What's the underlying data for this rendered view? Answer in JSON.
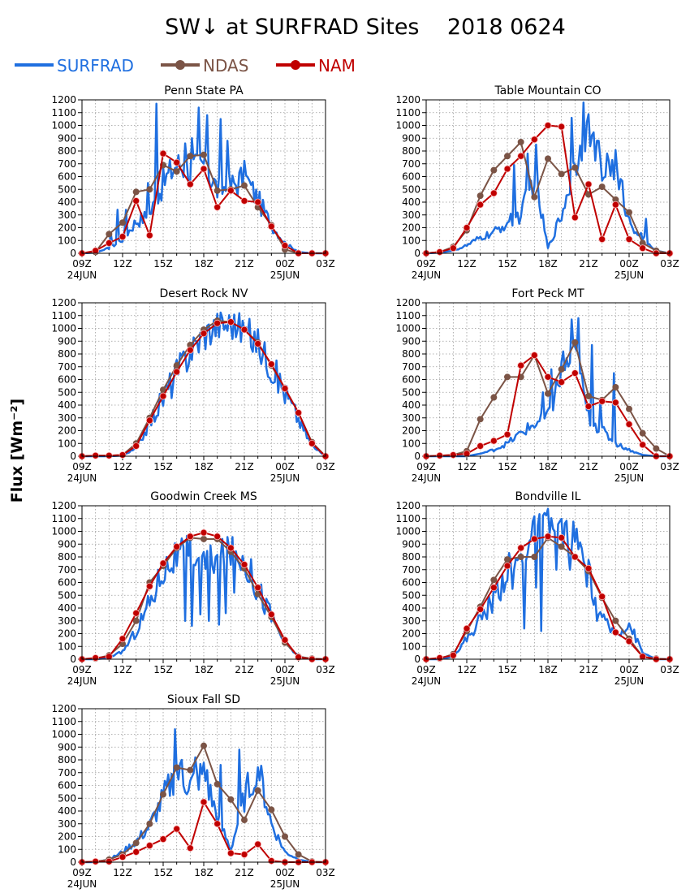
{
  "title": "SW↓ at SURFRAD Sites    2018 0624",
  "ylabel": "Flux [Wm⁻²]",
  "legend": [
    {
      "name": "SURFRAD",
      "color": "#1f6fe0",
      "marker": false
    },
    {
      "name": "NDAS",
      "color": "#7b5446",
      "marker": true
    },
    {
      "name": "NAM",
      "color": "#c00000",
      "marker": true
    }
  ],
  "colors": {
    "surfrad": "#1f6fe0",
    "ndas": "#7b5446",
    "nam": "#c00000",
    "grid": "#999999"
  },
  "chart_data": [
    {
      "type": "line",
      "title": "Penn State PA",
      "xlabel": "",
      "ylabel": "Flux [Wm⁻²]",
      "x": [
        "09Z",
        "10Z",
        "11Z",
        "12Z",
        "13Z",
        "14Z",
        "15Z",
        "16Z",
        "17Z",
        "18Z",
        "19Z",
        "20Z",
        "21Z",
        "22Z",
        "23Z",
        "00Z",
        "01Z",
        "02Z",
        "03Z"
      ],
      "xticks": [
        "09Z",
        "12Z",
        "15Z",
        "18Z",
        "21Z",
        "00Z",
        "03Z"
      ],
      "date_labels": {
        "09Z": "24JUN",
        "00Z": "25JUN"
      },
      "ylim": [
        0,
        1200
      ],
      "yticks": [
        0,
        100,
        200,
        300,
        400,
        500,
        600,
        700,
        800,
        900,
        1000,
        1100,
        1200
      ],
      "grid": true,
      "series": [
        {
          "name": "SURFRAD",
          "values": [
            0,
            5,
            40,
            110,
            250,
            300,
            550,
            700,
            640,
            700,
            500,
            520,
            600,
            420,
            220,
            80,
            10,
            0,
            0
          ],
          "peaks": [
            [
              11.1,
              160
            ],
            [
              11.6,
              340
            ],
            [
              12.3,
              340
            ],
            [
              13.9,
              550
            ],
            [
              14.5,
              1170
            ],
            [
              16.6,
              860
            ],
            [
              17.1,
              900
            ],
            [
              17.6,
              1140
            ],
            [
              18.2,
              1080
            ],
            [
              19.3,
              1050
            ],
            [
              19.8,
              880
            ],
            [
              21.1,
              610
            ]
          ]
        },
        {
          "name": "NDAS",
          "values": [
            0,
            10,
            150,
            240,
            480,
            500,
            690,
            640,
            760,
            770,
            490,
            500,
            530,
            360,
            220,
            30,
            0,
            0,
            0
          ]
        },
        {
          "name": "NAM",
          "values": [
            0,
            20,
            80,
            130,
            410,
            140,
            780,
            710,
            540,
            660,
            360,
            490,
            410,
            400,
            210,
            60,
            0,
            0,
            0
          ]
        }
      ]
    },
    {
      "type": "line",
      "title": "Table Mountain CO",
      "xlabel": "",
      "ylabel": "Flux [Wm⁻²]",
      "x": [
        "09Z",
        "10Z",
        "11Z",
        "12Z",
        "13Z",
        "14Z",
        "15Z",
        "16Z",
        "17Z",
        "18Z",
        "19Z",
        "20Z",
        "21Z",
        "22Z",
        "23Z",
        "00Z",
        "01Z",
        "02Z",
        "03Z"
      ],
      "xticks": [
        "09Z",
        "12Z",
        "15Z",
        "18Z",
        "21Z",
        "00Z",
        "03Z"
      ],
      "date_labels": {
        "09Z": "24JUN",
        "00Z": "25JUN"
      },
      "ylim": [
        0,
        1200
      ],
      "yticks": [
        0,
        100,
        200,
        300,
        400,
        500,
        600,
        700,
        800,
        900,
        1000,
        1100,
        1200
      ],
      "grid": true,
      "series": [
        {
          "name": "SURFRAD",
          "values": [
            0,
            5,
            20,
            60,
            120,
            160,
            240,
            300,
            600,
            40,
            300,
            700,
            1000,
            600,
            700,
            250,
            120,
            20,
            0
          ],
          "peaks": [
            [
              15.5,
              690
            ],
            [
              16.5,
              780
            ],
            [
              17.1,
              850
            ],
            [
              19.8,
              1060
            ],
            [
              20.6,
              1180
            ],
            [
              21.7,
              880
            ],
            [
              22.4,
              780
            ],
            [
              23.2,
              500
            ],
            [
              24.2,
              200
            ],
            [
              25.3,
              270
            ]
          ]
        },
        {
          "name": "NDAS",
          "values": [
            0,
            10,
            50,
            180,
            450,
            650,
            760,
            870,
            440,
            740,
            620,
            670,
            460,
            520,
            420,
            320,
            80,
            20,
            0
          ]
        },
        {
          "name": "NAM",
          "values": [
            0,
            10,
            40,
            200,
            380,
            470,
            660,
            760,
            890,
            1000,
            990,
            280,
            540,
            110,
            380,
            110,
            40,
            0,
            0
          ]
        }
      ]
    },
    {
      "type": "line",
      "title": "Desert Rock NV",
      "xlabel": "",
      "ylabel": "Flux [Wm⁻²]",
      "x": [
        "09Z",
        "10Z",
        "11Z",
        "12Z",
        "13Z",
        "14Z",
        "15Z",
        "16Z",
        "17Z",
        "18Z",
        "19Z",
        "20Z",
        "21Z",
        "22Z",
        "23Z",
        "00Z",
        "01Z",
        "02Z",
        "03Z"
      ],
      "xticks": [
        "09Z",
        "12Z",
        "15Z",
        "18Z",
        "21Z",
        "00Z",
        "03Z"
      ],
      "date_labels": {
        "09Z": "24JUN",
        "00Z": "25JUN"
      },
      "ylim": [
        0,
        1200
      ],
      "yticks": [
        0,
        100,
        200,
        300,
        400,
        500,
        600,
        700,
        800,
        900,
        1000,
        1100,
        1200
      ],
      "grid": true,
      "series": [
        {
          "name": "SURFRAD",
          "values": [
            0,
            0,
            0,
            5,
            60,
            260,
            460,
            650,
            820,
            950,
            1030,
            1040,
            990,
            880,
            700,
            500,
            290,
            80,
            0
          ]
        },
        {
          "name": "NDAS",
          "values": [
            0,
            5,
            5,
            10,
            100,
            300,
            520,
            710,
            870,
            990,
            1060,
            1050,
            990,
            890,
            710,
            530,
            340,
            110,
            0
          ]
        },
        {
          "name": "NAM",
          "values": [
            0,
            5,
            5,
            10,
            80,
            280,
            470,
            660,
            830,
            960,
            1040,
            1050,
            990,
            880,
            720,
            530,
            340,
            100,
            0
          ]
        }
      ]
    },
    {
      "type": "line",
      "title": "Fort Peck MT",
      "xlabel": "",
      "ylabel": "Flux [Wm⁻²]",
      "x": [
        "09Z",
        "10Z",
        "11Z",
        "12Z",
        "13Z",
        "14Z",
        "15Z",
        "16Z",
        "17Z",
        "18Z",
        "19Z",
        "20Z",
        "21Z",
        "22Z",
        "23Z",
        "00Z",
        "01Z",
        "02Z",
        "03Z"
      ],
      "xticks": [
        "09Z",
        "12Z",
        "15Z",
        "18Z",
        "21Z",
        "00Z",
        "03Z"
      ],
      "date_labels": {
        "09Z": "24JUN",
        "00Z": "25JUN"
      },
      "ylim": [
        0,
        1200
      ],
      "yticks": [
        0,
        100,
        200,
        300,
        400,
        500,
        600,
        700,
        800,
        900,
        1000,
        1100,
        1200
      ],
      "grid": true,
      "series": [
        {
          "name": "SURFRAD",
          "values": [
            0,
            0,
            0,
            0,
            20,
            50,
            100,
            180,
            250,
            300,
            650,
            800,
            300,
            200,
            100,
            50,
            10,
            0,
            0
          ],
          "peaks": [
            [
              17.6,
              500
            ],
            [
              18.3,
              680
            ],
            [
              19.1,
              820
            ],
            [
              19.7,
              1070
            ],
            [
              20.2,
              1080
            ],
            [
              21.2,
              870
            ],
            [
              21.9,
              430
            ],
            [
              22.9,
              650
            ]
          ]
        },
        {
          "name": "NDAS",
          "values": [
            0,
            5,
            10,
            40,
            290,
            460,
            620,
            620,
            790,
            490,
            680,
            890,
            470,
            440,
            540,
            370,
            180,
            60,
            0
          ]
        },
        {
          "name": "NAM",
          "values": [
            0,
            5,
            10,
            20,
            80,
            120,
            170,
            710,
            790,
            620,
            580,
            650,
            390,
            430,
            420,
            250,
            90,
            0,
            0
          ]
        }
      ]
    },
    {
      "type": "line",
      "title": "Goodwin Creek MS",
      "xlabel": "",
      "ylabel": "Flux [Wm⁻²]",
      "x": [
        "09Z",
        "10Z",
        "11Z",
        "12Z",
        "13Z",
        "14Z",
        "15Z",
        "16Z",
        "17Z",
        "18Z",
        "19Z",
        "20Z",
        "21Z",
        "22Z",
        "23Z",
        "00Z",
        "01Z",
        "02Z",
        "03Z"
      ],
      "xticks": [
        "09Z",
        "12Z",
        "15Z",
        "18Z",
        "21Z",
        "00Z",
        "03Z"
      ],
      "date_labels": {
        "09Z": "24JUN",
        "00Z": "25JUN"
      },
      "ylim": [
        0,
        1200
      ],
      "yticks": [
        0,
        100,
        200,
        300,
        400,
        500,
        600,
        700,
        800,
        900,
        1000,
        1100,
        1200
      ],
      "grid": true,
      "series": [
        {
          "name": "SURFRAD",
          "values": [
            0,
            0,
            10,
            60,
            220,
            450,
            700,
            800,
            850,
            750,
            800,
            850,
            780,
            560,
            340,
            130,
            20,
            0,
            0
          ],
          "dips": [
            [
              16.6,
              300
            ],
            [
              17.1,
              260
            ],
            [
              17.8,
              350
            ],
            [
              18.4,
              300
            ],
            [
              19.1,
              270
            ],
            [
              19.6,
              360
            ],
            [
              20.2,
              520
            ]
          ]
        },
        {
          "name": "NDAS",
          "values": [
            0,
            5,
            30,
            120,
            300,
            600,
            730,
            870,
            950,
            940,
            940,
            840,
            710,
            510,
            330,
            130,
            20,
            5,
            0
          ]
        },
        {
          "name": "NAM",
          "values": [
            0,
            10,
            20,
            160,
            360,
            570,
            750,
            880,
            960,
            990,
            960,
            870,
            740,
            560,
            350,
            150,
            15,
            0,
            0
          ]
        }
      ]
    },
    {
      "type": "line",
      "title": "Bondville IL",
      "xlabel": "",
      "ylabel": "Flux [Wm⁻²]",
      "x": [
        "09Z",
        "10Z",
        "11Z",
        "12Z",
        "13Z",
        "14Z",
        "15Z",
        "16Z",
        "17Z",
        "18Z",
        "19Z",
        "20Z",
        "21Z",
        "22Z",
        "23Z",
        "00Z",
        "01Z",
        "02Z",
        "03Z"
      ],
      "xticks": [
        "09Z",
        "12Z",
        "15Z",
        "18Z",
        "21Z",
        "00Z",
        "03Z"
      ],
      "date_labels": {
        "09Z": "24JUN",
        "00Z": "25JUN"
      },
      "ylim": [
        0,
        1200
      ],
      "yticks": [
        0,
        100,
        200,
        300,
        400,
        500,
        600,
        700,
        800,
        900,
        1000,
        1100,
        1200
      ],
      "grid": true,
      "series": [
        {
          "name": "SURFRAD",
          "values": [
            0,
            0,
            20,
            160,
            310,
            480,
            700,
            780,
            1000,
            1050,
            1000,
            950,
            650,
            300,
            200,
            280,
            50,
            0,
            0
          ],
          "dips": [
            [
              15.4,
              550
            ],
            [
              16.2,
              240
            ],
            [
              17.1,
              560
            ],
            [
              17.5,
              220
            ],
            [
              18.6,
              700
            ],
            [
              19.6,
              700
            ],
            [
              20.3,
              860
            ],
            [
              21.6,
              300
            ]
          ]
        },
        {
          "name": "NDAS",
          "values": [
            0,
            5,
            40,
            220,
            410,
            620,
            780,
            800,
            800,
            950,
            880,
            800,
            690,
            480,
            300,
            160,
            20,
            5,
            0
          ]
        },
        {
          "name": "NAM",
          "values": [
            0,
            10,
            30,
            240,
            390,
            560,
            730,
            870,
            940,
            960,
            950,
            800,
            710,
            490,
            210,
            140,
            20,
            0,
            0
          ]
        }
      ]
    },
    {
      "type": "line",
      "title": "Sioux Fall SD",
      "xlabel": "",
      "ylabel": "Flux [Wm⁻²]",
      "x": [
        "09Z",
        "10Z",
        "11Z",
        "12Z",
        "13Z",
        "14Z",
        "15Z",
        "16Z",
        "17Z",
        "18Z",
        "19Z",
        "20Z",
        "21Z",
        "22Z",
        "23Z",
        "00Z",
        "01Z",
        "02Z",
        "03Z"
      ],
      "xticks": [
        "09Z",
        "12Z",
        "15Z",
        "18Z",
        "21Z",
        "00Z",
        "03Z"
      ],
      "date_labels": {
        "09Z": "24JUN",
        "00Z": "25JUN"
      },
      "ylim": [
        0,
        1200
      ],
      "yticks": [
        0,
        100,
        200,
        300,
        400,
        500,
        600,
        700,
        800,
        900,
        1000,
        1100,
        1200
      ],
      "grid": true,
      "series": [
        {
          "name": "SURFRAD",
          "values": [
            0,
            0,
            20,
            80,
            160,
            280,
            500,
            700,
            600,
            700,
            350,
            100,
            500,
            750,
            300,
            80,
            20,
            0,
            0
          ],
          "peaks": [
            [
              15.9,
              1040
            ],
            [
              16.4,
              800
            ],
            [
              17.4,
              820
            ],
            [
              18.2,
              720
            ],
            [
              19.2,
              760
            ],
            [
              20.6,
              880
            ],
            [
              21.3,
              700
            ],
            [
              21.8,
              580
            ]
          ]
        },
        {
          "name": "NDAS",
          "values": [
            0,
            5,
            20,
            60,
            150,
            300,
            530,
            740,
            720,
            910,
            610,
            490,
            330,
            560,
            410,
            200,
            60,
            5,
            0
          ]
        },
        {
          "name": "NAM",
          "values": [
            0,
            5,
            5,
            40,
            80,
            130,
            180,
            260,
            110,
            470,
            300,
            70,
            60,
            140,
            10,
            0,
            0,
            0,
            0
          ]
        }
      ]
    }
  ]
}
